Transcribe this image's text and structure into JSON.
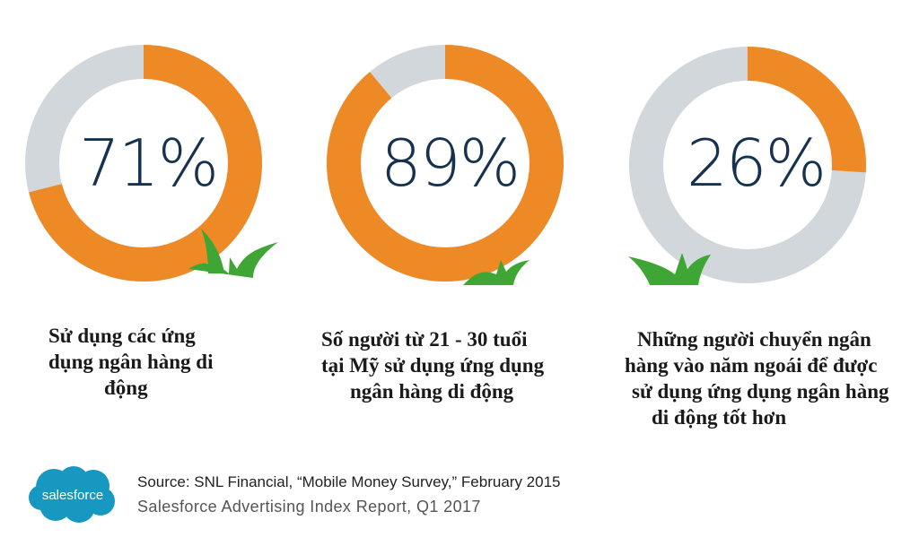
{
  "chart_data": [
    {
      "type": "pie",
      "values": [
        71,
        29
      ],
      "center_label": "71%",
      "caption": [
        "Sử dụng các ứng",
        "dụng ngân hàng di",
        "động"
      ],
      "colors": {
        "value": "#ee8a26",
        "remainder": "#d2d7dc"
      }
    },
    {
      "type": "pie",
      "values": [
        89,
        11
      ],
      "center_label": "89%",
      "caption": [
        "Số người từ 21 - 30 tuổi",
        "tại Mỹ sử dụng ứng dụng",
        "ngân hàng di động"
      ],
      "colors": {
        "value": "#ee8a26",
        "remainder": "#d2d7dc"
      }
    },
    {
      "type": "pie",
      "values": [
        26,
        74
      ],
      "center_label": "26%",
      "caption": [
        "Những người chuyển ngân",
        "hàng vào năm ngoái để được",
        "sử dụng ứng dụng ngân hàng",
        "di động tốt hơn"
      ],
      "colors": {
        "value": "#ee8a26",
        "remainder": "#d2d7dc"
      }
    }
  ],
  "footer": {
    "logo_text": "salesforce",
    "source": "Source: SNL Financial, “Mobile Money Survey,” February 2015",
    "report": "Salesforce Advertising Index Report, Q1 2017"
  },
  "colors": {
    "grass": "#3fa535",
    "text_dark": "#16324f",
    "logo": "#1798c1"
  }
}
